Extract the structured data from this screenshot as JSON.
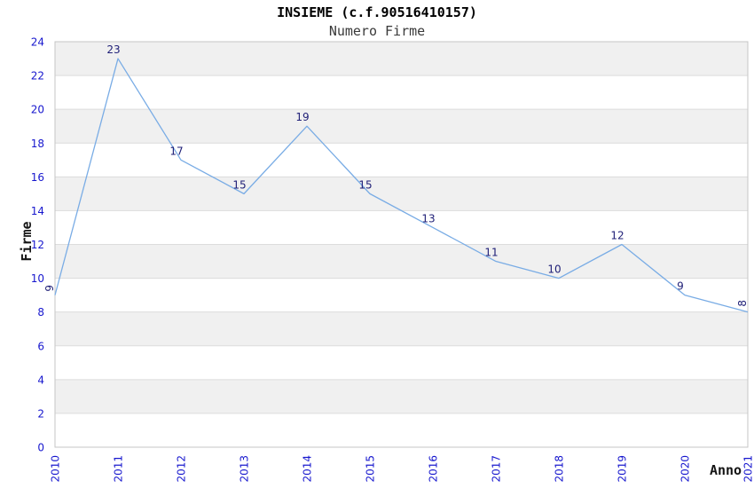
{
  "chart_data": {
    "type": "line",
    "title": "INSIEME (c.f.90516410157)",
    "subtitle": "Numero Firme",
    "xlabel": "Anno",
    "ylabel": "Firme",
    "categories": [
      "2010",
      "2011",
      "2012",
      "2013",
      "2014",
      "2015",
      "2016",
      "2017",
      "2018",
      "2019",
      "2020",
      "2021"
    ],
    "values": [
      9,
      23,
      17,
      15,
      19,
      15,
      13,
      11,
      10,
      12,
      9,
      8
    ],
    "ylim": [
      0,
      24
    ],
    "ytick_step": 2,
    "yticks": [
      0,
      2,
      4,
      6,
      8,
      10,
      12,
      14,
      16,
      18,
      20,
      22,
      24
    ],
    "xtick_rotation_deg": 90,
    "data_labels_visible": true,
    "edge_data_labels_rotated": true,
    "grid": "alternating-horizontal-bands",
    "legend_position": "none",
    "colors": {
      "line": "#79ACE5",
      "tick_label": "#1717CE",
      "data_label": "#1F1F77",
      "band_gray": "#F0F0F0",
      "band_white": "#FFFFFF",
      "grid_line": "#DCDCDC",
      "plot_border": "#C6C6C6",
      "title": "#000000",
      "subtitle": "#3A3A3A",
      "axis_title": "#141414",
      "background": "#FFFFFF"
    }
  }
}
